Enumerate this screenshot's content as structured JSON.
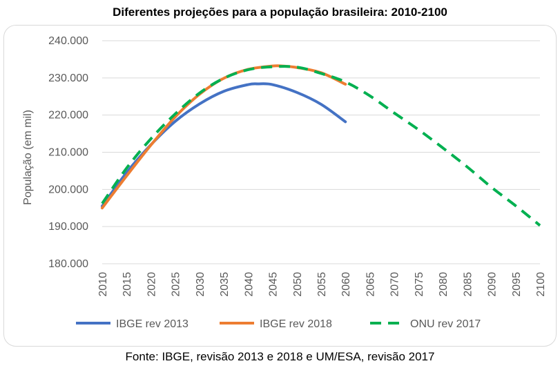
{
  "chart_data": {
    "type": "line",
    "title": "Diferentes projeções para a população brasileira: 2010-2100",
    "ylabel": "População (em mil)",
    "xlabel": "",
    "xlim": [
      2010,
      2100
    ],
    "ylim": [
      180000,
      240000
    ],
    "x_ticks": [
      "2010",
      "2015",
      "2020",
      "2025",
      "2030",
      "2035",
      "2040",
      "2045",
      "2050",
      "2055",
      "2060",
      "2065",
      "2070",
      "2075",
      "2080",
      "2085",
      "2090",
      "2095",
      "2100"
    ],
    "y_ticks": [
      "180.000",
      "190.000",
      "200.000",
      "210.000",
      "220.000",
      "230.000",
      "240.000"
    ],
    "y_tick_values": [
      180000,
      190000,
      200000,
      210000,
      220000,
      230000,
      240000
    ],
    "grid": "horizontal",
    "legend_position": "bottom",
    "series": [
      {
        "name": "IBGE rev 2013",
        "color": "#4472c4",
        "style": "solid",
        "x": [
          2010,
          2015,
          2020,
          2025,
          2030,
          2035,
          2040,
          2042,
          2045,
          2050,
          2055,
          2060
        ],
        "y": [
          195500,
          204500,
          212000,
          218300,
          223000,
          226400,
          228200,
          228400,
          228200,
          226100,
          222900,
          218200
        ]
      },
      {
        "name": "IBGE rev 2018",
        "color": "#ed7d31",
        "style": "solid",
        "x": [
          2010,
          2015,
          2020,
          2025,
          2030,
          2035,
          2040,
          2045,
          2047,
          2050,
          2055,
          2060
        ],
        "y": [
          195000,
          203600,
          211900,
          219500,
          225600,
          229900,
          232300,
          233200,
          233200,
          232800,
          231400,
          228300
        ]
      },
      {
        "name": "ONU rev 2017",
        "color": "#00b050",
        "style": "dashed",
        "x": [
          2010,
          2015,
          2020,
          2025,
          2030,
          2035,
          2040,
          2045,
          2050,
          2055,
          2060,
          2065,
          2070,
          2075,
          2080,
          2085,
          2090,
          2095,
          2100
        ],
        "y": [
          196200,
          205700,
          213600,
          220300,
          225900,
          229900,
          232200,
          233000,
          232900,
          231200,
          228900,
          225200,
          220600,
          216100,
          211200,
          206100,
          200600,
          195600,
          190300
        ]
      }
    ]
  },
  "source_note": "Fonte: IBGE, revisão 2013 e 2018 e UM/ESA, revisão 2017"
}
